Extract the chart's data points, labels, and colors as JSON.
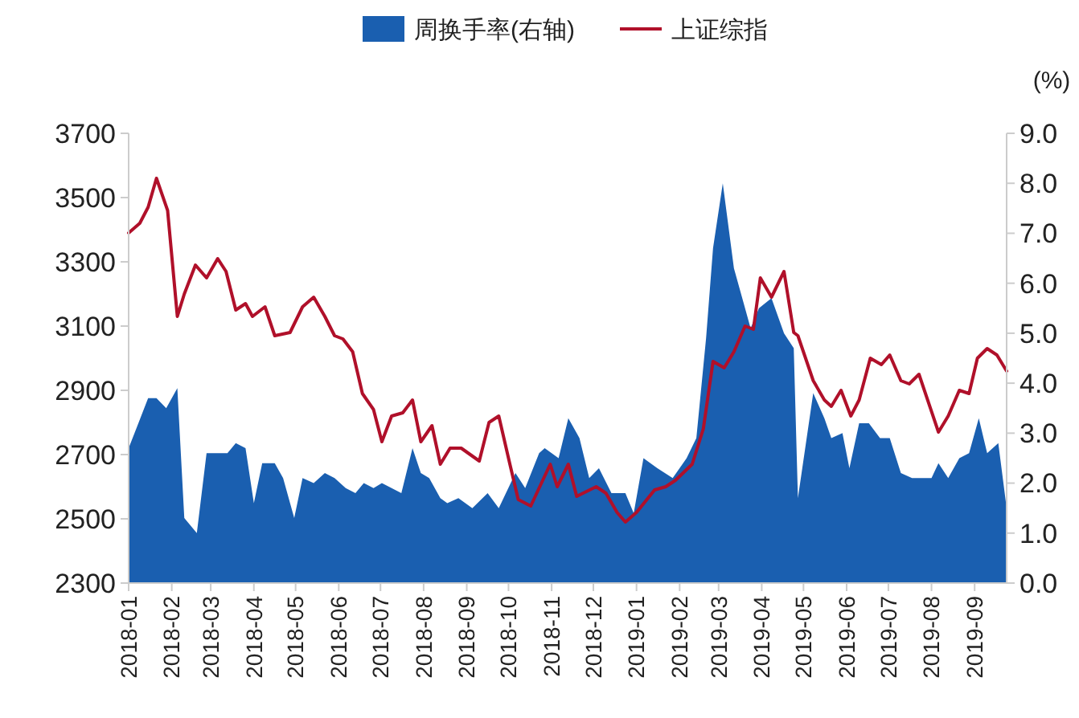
{
  "chart_data": {
    "type": "line",
    "legend": "top",
    "y2label": "(%)",
    "xlim": [
      "2018-01-01",
      "2019-09-24"
    ],
    "xticks": [
      "2018-01",
      "2018-02",
      "2018-03",
      "2018-04",
      "2018-05",
      "2018-06",
      "2018-07",
      "2018-08",
      "2018-09",
      "2018-10",
      "2018-11",
      "2018-12",
      "2019-01",
      "2019-02",
      "2019-03",
      "2019-04",
      "2019-05",
      "2019-06",
      "2019-07",
      "2019-08",
      "2019-09"
    ],
    "ylim": [
      2300,
      3700
    ],
    "yticks": [
      2300,
      2500,
      2700,
      2900,
      3100,
      3300,
      3500,
      3700
    ],
    "y2lim": [
      0,
      9
    ],
    "y2ticks": [
      {
        "value": 0,
        "label": "0.0"
      },
      {
        "value": 1,
        "label": "1.0"
      },
      {
        "value": 2,
        "label": "2.0"
      },
      {
        "value": 3,
        "label": "3.0"
      },
      {
        "value": 4,
        "label": "4.0"
      },
      {
        "value": 5,
        "label": "5.0"
      },
      {
        "value": 6,
        "label": "6.0"
      },
      {
        "value": 7,
        "label": "7.0"
      },
      {
        "value": 8,
        "label": "8.0"
      },
      {
        "value": 9,
        "label": "9.0"
      }
    ],
    "series": [
      {
        "name": "周换手率(右轴)",
        "type": "area",
        "axis": "y2",
        "color": "#1a5fb0",
        "x": [
          "2018-01-01",
          "2018-01-08",
          "2018-01-15",
          "2018-01-21",
          "2018-01-28",
          "2018-02-05",
          "2018-02-10",
          "2018-02-19",
          "2018-02-26",
          "2018-03-04",
          "2018-03-13",
          "2018-03-19",
          "2018-03-26",
          "2018-04-01",
          "2018-04-07",
          "2018-04-16",
          "2018-04-22",
          "2018-04-30",
          "2018-05-06",
          "2018-05-14",
          "2018-05-22",
          "2018-05-29",
          "2018-06-06",
          "2018-06-13",
          "2018-06-19",
          "2018-06-26",
          "2018-07-02",
          "2018-07-09",
          "2018-07-16",
          "2018-07-24",
          "2018-07-30",
          "2018-08-05",
          "2018-08-13",
          "2018-08-18",
          "2018-08-26",
          "2018-09-05",
          "2018-09-16",
          "2018-09-24",
          "2018-10-06",
          "2018-10-13",
          "2018-10-23",
          "2018-10-27",
          "2018-11-06",
          "2018-11-13",
          "2018-11-21",
          "2018-11-28",
          "2018-12-05",
          "2018-12-14",
          "2018-12-24",
          "2018-12-30",
          "2019-01-06",
          "2019-01-16",
          "2019-01-27",
          "2019-02-06",
          "2019-02-13",
          "2019-02-20",
          "2019-02-25",
          "2019-03-04",
          "2019-03-12",
          "2019-03-19",
          "2019-03-24",
          "2019-03-30",
          "2019-04-08",
          "2019-04-17",
          "2019-04-24",
          "2019-04-27",
          "2019-05-08",
          "2019-05-16",
          "2019-05-21",
          "2019-05-29",
          "2019-06-03",
          "2019-06-10",
          "2019-06-17",
          "2019-06-25",
          "2019-07-02",
          "2019-07-10",
          "2019-07-18",
          "2019-07-25",
          "2019-08-01",
          "2019-08-06",
          "2019-08-13",
          "2019-08-21",
          "2019-08-28",
          "2019-09-04",
          "2019-09-10",
          "2019-09-18",
          "2019-09-24"
        ],
        "values": [
          2.7,
          3.2,
          3.7,
          3.7,
          3.5,
          3.9,
          1.3,
          1.0,
          2.6,
          2.6,
          2.6,
          2.8,
          2.7,
          1.6,
          2.4,
          2.4,
          2.1,
          1.3,
          2.1,
          2.0,
          2.2,
          2.1,
          1.9,
          1.8,
          2.0,
          1.9,
          2.0,
          1.9,
          1.8,
          2.7,
          2.2,
          2.1,
          1.7,
          1.6,
          1.7,
          1.5,
          1.8,
          1.5,
          2.2,
          1.9,
          2.6,
          2.7,
          2.5,
          3.3,
          2.9,
          2.1,
          2.3,
          1.8,
          1.8,
          1.4,
          2.5,
          2.3,
          2.1,
          2.5,
          2.9,
          4.9,
          6.7,
          8.0,
          6.3,
          5.6,
          5.1,
          5.5,
          5.7,
          5.0,
          4.7,
          1.7,
          3.8,
          3.3,
          2.9,
          3.0,
          2.3,
          3.2,
          3.2,
          2.9,
          2.9,
          2.2,
          2.1,
          2.1,
          2.1,
          2.4,
          2.1,
          2.5,
          2.6,
          3.3,
          2.6,
          2.8,
          1.5
        ]
      },
      {
        "name": "上证综指",
        "color": "#b0102a",
        "x": [
          "2018-01-01",
          "2018-01-09",
          "2018-01-15",
          "2018-01-21",
          "2018-01-29",
          "2018-02-05",
          "2018-02-10",
          "2018-02-18",
          "2018-02-26",
          "2018-03-06",
          "2018-03-12",
          "2018-03-19",
          "2018-03-26",
          "2018-03-31",
          "2018-04-09",
          "2018-04-16",
          "2018-04-27",
          "2018-05-06",
          "2018-05-14",
          "2018-05-22",
          "2018-05-29",
          "2018-06-04",
          "2018-06-11",
          "2018-06-18",
          "2018-06-26",
          "2018-07-02",
          "2018-07-09",
          "2018-07-17",
          "2018-07-24",
          "2018-07-30",
          "2018-08-07",
          "2018-08-13",
          "2018-08-20",
          "2018-08-28",
          "2018-09-10",
          "2018-09-17",
          "2018-09-24",
          "2018-10-02",
          "2018-10-08",
          "2018-10-17",
          "2018-10-31",
          "2018-11-05",
          "2018-11-13",
          "2018-11-19",
          "2018-12-03",
          "2018-12-10",
          "2018-12-18",
          "2018-12-24",
          "2019-01-01",
          "2019-01-14",
          "2019-01-22",
          "2019-01-29",
          "2019-02-10",
          "2019-02-18",
          "2019-02-25",
          "2019-03-05",
          "2019-03-12",
          "2019-03-20",
          "2019-03-26",
          "2019-03-31",
          "2019-04-08",
          "2019-04-17",
          "2019-04-24",
          "2019-04-27",
          "2019-05-08",
          "2019-05-16",
          "2019-05-21",
          "2019-05-28",
          "2019-06-04",
          "2019-06-10",
          "2019-06-18",
          "2019-06-26",
          "2019-07-02",
          "2019-07-10",
          "2019-07-16",
          "2019-07-23",
          "2019-08-06",
          "2019-08-13",
          "2019-08-21",
          "2019-08-28",
          "2019-09-03",
          "2019-09-10",
          "2019-09-17",
          "2019-09-24"
        ],
        "values": [
          3390,
          3420,
          3470,
          3560,
          3460,
          3130,
          3200,
          3290,
          3250,
          3310,
          3270,
          3150,
          3170,
          3130,
          3160,
          3070,
          3080,
          3160,
          3190,
          3130,
          3070,
          3060,
          3020,
          2890,
          2840,
          2740,
          2820,
          2830,
          2870,
          2740,
          2790,
          2670,
          2720,
          2720,
          2680,
          2800,
          2820,
          2670,
          2560,
          2540,
          2670,
          2600,
          2670,
          2570,
          2600,
          2580,
          2520,
          2490,
          2520,
          2590,
          2600,
          2620,
          2670,
          2780,
          2990,
          2970,
          3020,
          3100,
          3090,
          3250,
          3190,
          3270,
          3080,
          3070,
          2930,
          2870,
          2850,
          2900,
          2820,
          2870,
          3000,
          2980,
          3010,
          2930,
          2920,
          2950,
          2770,
          2820,
          2900,
          2890,
          3000,
          3030,
          3010,
          2960
        ]
      }
    ]
  }
}
